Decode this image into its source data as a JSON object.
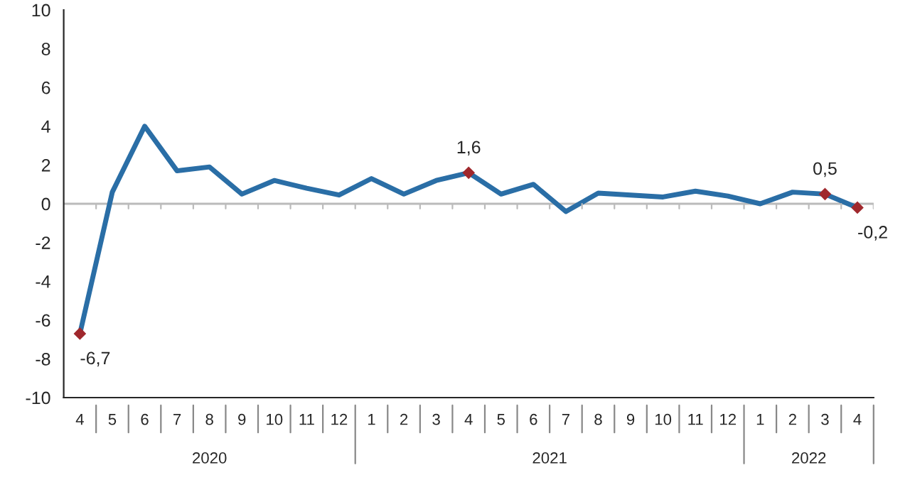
{
  "chart_data": {
    "type": "line",
    "categories": [
      "4",
      "5",
      "6",
      "7",
      "8",
      "9",
      "10",
      "11",
      "12",
      "1",
      "2",
      "3",
      "4",
      "5",
      "6",
      "7",
      "8",
      "9",
      "10",
      "11",
      "12",
      "1",
      "2",
      "3",
      "4"
    ],
    "series": [
      {
        "color": "#2a6ea6",
        "values": [
          -6.7,
          0.6,
          4.0,
          1.7,
          1.9,
          0.5,
          1.2,
          0.8,
          0.45,
          1.3,
          0.5,
          1.2,
          1.6,
          0.5,
          1.0,
          -0.4,
          0.55,
          0.45,
          0.35,
          0.65,
          0.4,
          0.0,
          0.6,
          0.5,
          -0.2
        ],
        "value_labels": [
          "-6,7",
          null,
          null,
          null,
          null,
          null,
          null,
          null,
          null,
          null,
          null,
          null,
          "1,6",
          null,
          null,
          null,
          null,
          null,
          null,
          null,
          null,
          null,
          null,
          "0,5",
          "-0,2"
        ],
        "colors": [
          "#a0282d",
          null,
          null,
          null,
          null,
          null,
          null,
          null,
          null,
          null,
          null,
          null,
          "#a0282d",
          null,
          null,
          null,
          null,
          null,
          null,
          null,
          null,
          null,
          null,
          "#a0282d",
          "#a0282d"
        ]
      }
    ],
    "ylim": [
      -10,
      10
    ],
    "yticks": [
      -10,
      -8,
      -6,
      -4,
      -2,
      0,
      2,
      4,
      6,
      8,
      10
    ],
    "ref_lines": [
      {
        "axis": "y",
        "value": 0,
        "color": "#bbbbbb"
      }
    ],
    "annotations": [
      "2020",
      "2021",
      "2022"
    ],
    "grid": false
  }
}
